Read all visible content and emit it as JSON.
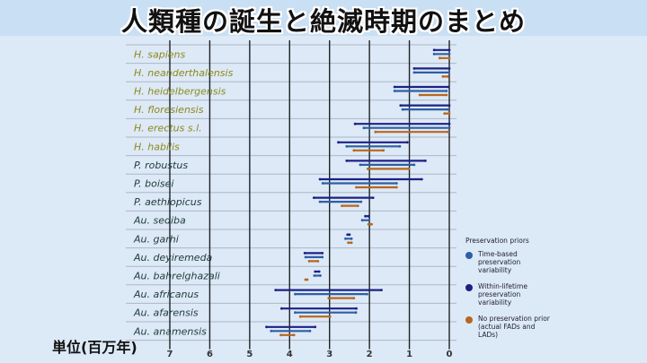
{
  "title": "人類種の誕生と絶滅時期のまとめ",
  "unit_label": "単位(百万年)",
  "colors": {
    "within_lifetime": "#1d2185",
    "time_based": "#2b5fa6",
    "no_prior": "#b8671c",
    "homo_label": "#8a8a1c",
    "other_label": "#1d3b3b"
  },
  "legend": {
    "title": "Preservation priors",
    "items": [
      {
        "label": "Time-based preservation variability",
        "color": "#2b5fa6"
      },
      {
        "label": "Within-lifetime preservation variability",
        "color": "#1d2185"
      },
      {
        "label": "No preservation prior (actual FADs and LADs)",
        "color": "#b8671c"
      }
    ]
  },
  "chart_data": {
    "type": "range-bar",
    "xlabel": "単位(百万年)",
    "xlim": [
      7,
      0
    ],
    "xticks": [
      "7",
      "6",
      "5",
      "4",
      "3",
      "2",
      "1",
      "0"
    ],
    "series_order": [
      "within_lifetime",
      "time_based",
      "no_prior"
    ],
    "species": [
      {
        "name": "H. sapiens",
        "homo": true,
        "within_lifetime": [
          0.38,
          0
        ],
        "time_based": [
          0.38,
          0
        ],
        "no_prior": [
          0.24,
          0
        ]
      },
      {
        "name": "H. neanderthalensis",
        "homo": true,
        "within_lifetime": [
          0.88,
          0
        ],
        "time_based": [
          0.88,
          0.01
        ],
        "no_prior": [
          0.16,
          0.04
        ]
      },
      {
        "name": "H. heidelbergensis",
        "homo": true,
        "within_lifetime": [
          1.37,
          0.02
        ],
        "time_based": [
          1.37,
          0.07
        ],
        "no_prior": [
          0.74,
          0.07
        ]
      },
      {
        "name": "H. floresiensis",
        "homo": true,
        "within_lifetime": [
          1.22,
          0
        ],
        "time_based": [
          1.17,
          0.05
        ],
        "no_prior": [
          0.12,
          0
        ]
      },
      {
        "name": "H. erectus s.l.",
        "homo": true,
        "within_lifetime": [
          2.36,
          0
        ],
        "time_based": [
          2.14,
          0
        ],
        "no_prior": [
          1.85,
          0.03
        ]
      },
      {
        "name": "H. habilis",
        "homo": true,
        "within_lifetime": [
          2.78,
          1.05
        ],
        "time_based": [
          2.57,
          1.24
        ],
        "no_prior": [
          2.39,
          1.65
        ]
      },
      {
        "name": "P. robustus",
        "homo": false,
        "within_lifetime": [
          2.57,
          0.6
        ],
        "time_based": [
          2.23,
          0.88
        ],
        "no_prior": [
          2.04,
          1.01
        ]
      },
      {
        "name": "P. boisei",
        "homo": false,
        "within_lifetime": [
          3.24,
          0.69
        ],
        "time_based": [
          3.17,
          1.32
        ],
        "no_prior": [
          2.33,
          1.32
        ]
      },
      {
        "name": "P. aethiopicus",
        "homo": false,
        "within_lifetime": [
          3.39,
          1.91
        ],
        "time_based": [
          3.24,
          2.21
        ],
        "no_prior": [
          2.69,
          2.29
        ]
      },
      {
        "name": "Au. sediba",
        "homo": false,
        "within_lifetime": [
          2.08,
          2.04
        ],
        "time_based": [
          2.18,
          2.01
        ],
        "no_prior": [
          2.0,
          1.97
        ]
      },
      {
        "name": "Au. garhi",
        "homo": false,
        "within_lifetime": [
          2.55,
          2.5
        ],
        "time_based": [
          2.6,
          2.45
        ],
        "no_prior": [
          2.53,
          2.45
        ]
      },
      {
        "name": "Au. deyiremeda",
        "homo": false,
        "within_lifetime": [
          3.62,
          3.18
        ],
        "time_based": [
          3.6,
          3.18
        ],
        "no_prior": [
          3.51,
          3.29
        ]
      },
      {
        "name": "Au. bahrelghazali",
        "homo": false,
        "within_lifetime": [
          3.36,
          3.26
        ],
        "time_based": [
          3.38,
          3.23
        ],
        "no_prior": [
          3.58,
          3.58
        ]
      },
      {
        "name": "Au. africanus",
        "homo": false,
        "within_lifetime": [
          4.35,
          1.7
        ],
        "time_based": [
          3.86,
          2.06
        ],
        "no_prior": [
          3.02,
          2.39
        ]
      },
      {
        "name": "Au. afarensis",
        "homo": false,
        "within_lifetime": [
          4.2,
          2.33
        ],
        "time_based": [
          3.86,
          2.34
        ],
        "no_prior": [
          3.73,
          2.99
        ]
      },
      {
        "name": "Au. anamensis",
        "homo": false,
        "within_lifetime": [
          4.58,
          3.36
        ],
        "time_based": [
          4.46,
          3.49
        ],
        "no_prior": [
          4.22,
          3.89
        ]
      }
    ]
  }
}
